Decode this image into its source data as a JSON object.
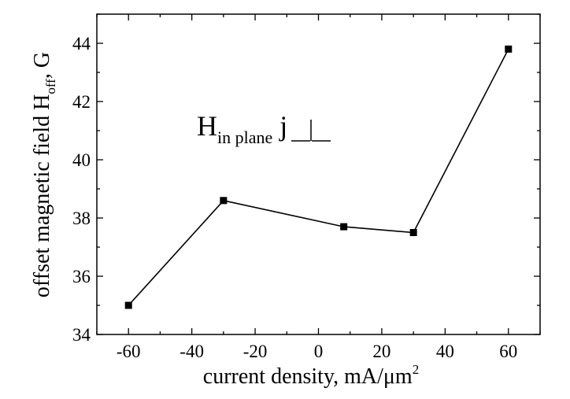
{
  "chart_data": {
    "type": "line",
    "xlabel": "current density, mA/μm",
    "xlabel_sup": "2",
    "ylabel": "offset magnetic field H",
    "ylabel_sub": "off",
    "ylabel_tail": ", G",
    "xlim": [
      -70,
      70
    ],
    "ylim": [
      34,
      45
    ],
    "xticks": [
      -60,
      -40,
      -20,
      0,
      20,
      40,
      60
    ],
    "yticks": [
      34,
      36,
      38,
      40,
      42,
      44
    ],
    "grid": false,
    "annotation": {
      "main": "H",
      "sub": "in plane",
      "tail": " j",
      "symbol": "⊥"
    },
    "series": [
      {
        "x": [
          -60,
          -30,
          8,
          30,
          60
        ],
        "y": [
          35.0,
          38.6,
          37.7,
          37.5,
          43.8
        ]
      }
    ]
  }
}
